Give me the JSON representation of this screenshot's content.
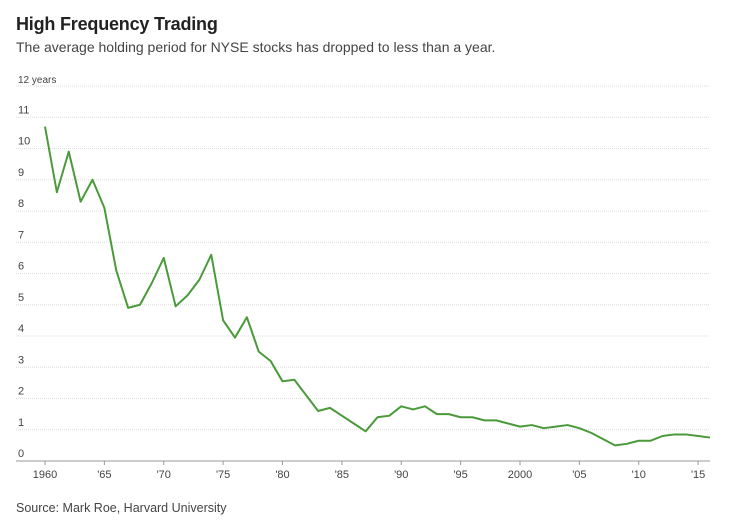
{
  "title": "High Frequency Trading",
  "subtitle": "The average holding period for NYSE stocks has dropped to less than a year.",
  "source": "Source: Mark Roe, Harvard University",
  "chart_data": {
    "type": "line",
    "ylabel": "12 years",
    "ylim": [
      0,
      12
    ],
    "xlim": [
      1960,
      2016
    ],
    "grid": true,
    "line_color": "#4a9a3a",
    "y_ticks": [
      {
        "value": 0,
        "label": "0"
      },
      {
        "value": 1,
        "label": "1"
      },
      {
        "value": 2,
        "label": "2"
      },
      {
        "value": 3,
        "label": "3"
      },
      {
        "value": 4,
        "label": "4"
      },
      {
        "value": 5,
        "label": "5"
      },
      {
        "value": 6,
        "label": "6"
      },
      {
        "value": 7,
        "label": "7"
      },
      {
        "value": 8,
        "label": "8"
      },
      {
        "value": 9,
        "label": "9"
      },
      {
        "value": 10,
        "label": "10"
      },
      {
        "value": 11,
        "label": "11"
      }
    ],
    "x_ticks": [
      {
        "value": 1960,
        "label": "1960"
      },
      {
        "value": 1965,
        "label": "'65"
      },
      {
        "value": 1970,
        "label": "'70"
      },
      {
        "value": 1975,
        "label": "'75"
      },
      {
        "value": 1980,
        "label": "'80"
      },
      {
        "value": 1985,
        "label": "'85"
      },
      {
        "value": 1990,
        "label": "'90"
      },
      {
        "value": 1995,
        "label": "'95"
      },
      {
        "value": 2000,
        "label": "2000"
      },
      {
        "value": 2005,
        "label": "'05"
      },
      {
        "value": 2010,
        "label": "'10"
      },
      {
        "value": 2015,
        "label": "'15"
      }
    ],
    "series": [
      {
        "x": [
          1960,
          1961,
          1962,
          1963,
          1964,
          1965,
          1966,
          1967,
          1968,
          1969,
          1970,
          1971,
          1972,
          1973,
          1974,
          1975,
          1976,
          1977,
          1978,
          1979,
          1980,
          1981,
          1982,
          1983,
          1984,
          1985,
          1986,
          1987,
          1988,
          1989,
          1990,
          1991,
          1992,
          1993,
          1994,
          1995,
          1996,
          1997,
          1998,
          1999,
          2000,
          2001,
          2002,
          2003,
          2004,
          2005,
          2006,
          2007,
          2008,
          2009,
          2010,
          2011,
          2012,
          2013,
          2014,
          2015,
          2016
        ],
        "y": [
          10.7,
          8.6,
          9.9,
          8.3,
          9.0,
          8.1,
          6.1,
          4.9,
          5.0,
          5.7,
          6.5,
          4.95,
          5.3,
          5.8,
          6.6,
          4.5,
          3.95,
          4.6,
          3.5,
          3.2,
          2.55,
          2.6,
          2.1,
          1.6,
          1.7,
          1.45,
          1.2,
          0.95,
          1.4,
          1.45,
          1.75,
          1.65,
          1.75,
          1.5,
          1.5,
          1.4,
          1.4,
          1.3,
          1.3,
          1.2,
          1.1,
          1.15,
          1.05,
          1.1,
          1.15,
          1.05,
          0.9,
          0.7,
          0.5,
          0.55,
          0.65,
          0.65,
          0.8,
          0.85,
          0.85,
          0.8,
          0.75
        ]
      }
    ]
  }
}
